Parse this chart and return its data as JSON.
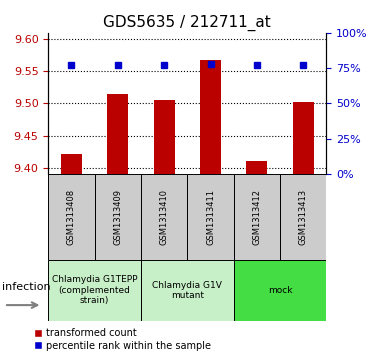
{
  "title": "GDS5635 / 212711_at",
  "samples": [
    "GSM1313408",
    "GSM1313409",
    "GSM1313410",
    "GSM1313411",
    "GSM1313412",
    "GSM1313413"
  ],
  "red_values": [
    9.422,
    9.515,
    9.505,
    9.567,
    9.41,
    9.503
  ],
  "blue_percentiles": [
    77,
    77,
    77,
    78,
    77,
    77
  ],
  "ylim_left": [
    9.39,
    9.61
  ],
  "ylim_right": [
    0,
    100
  ],
  "yticks_left": [
    9.4,
    9.45,
    9.5,
    9.55,
    9.6
  ],
  "yticks_right": [
    0,
    25,
    50,
    75,
    100
  ],
  "bar_base": 9.39,
  "groups": [
    {
      "label": "Chlamydia G1TEPP\n(complemented\nstrain)",
      "start": 0,
      "end": 2,
      "color": "#c8f0c8"
    },
    {
      "label": "Chlamydia G1V\nmutant",
      "start": 2,
      "end": 4,
      "color": "#c8f0c8"
    },
    {
      "label": "mock",
      "start": 4,
      "end": 6,
      "color": "#44dd44"
    }
  ],
  "infection_label": "infection",
  "legend_red": "transformed count",
  "legend_blue": "percentile rank within the sample",
  "red_color": "#bb0000",
  "blue_color": "#0000cc",
  "sample_box_color": "#cccccc",
  "bar_width": 0.45,
  "title_fontsize": 11,
  "tick_fontsize": 8,
  "sample_fontsize": 6,
  "group_fontsize": 6.5,
  "legend_fontsize": 7
}
